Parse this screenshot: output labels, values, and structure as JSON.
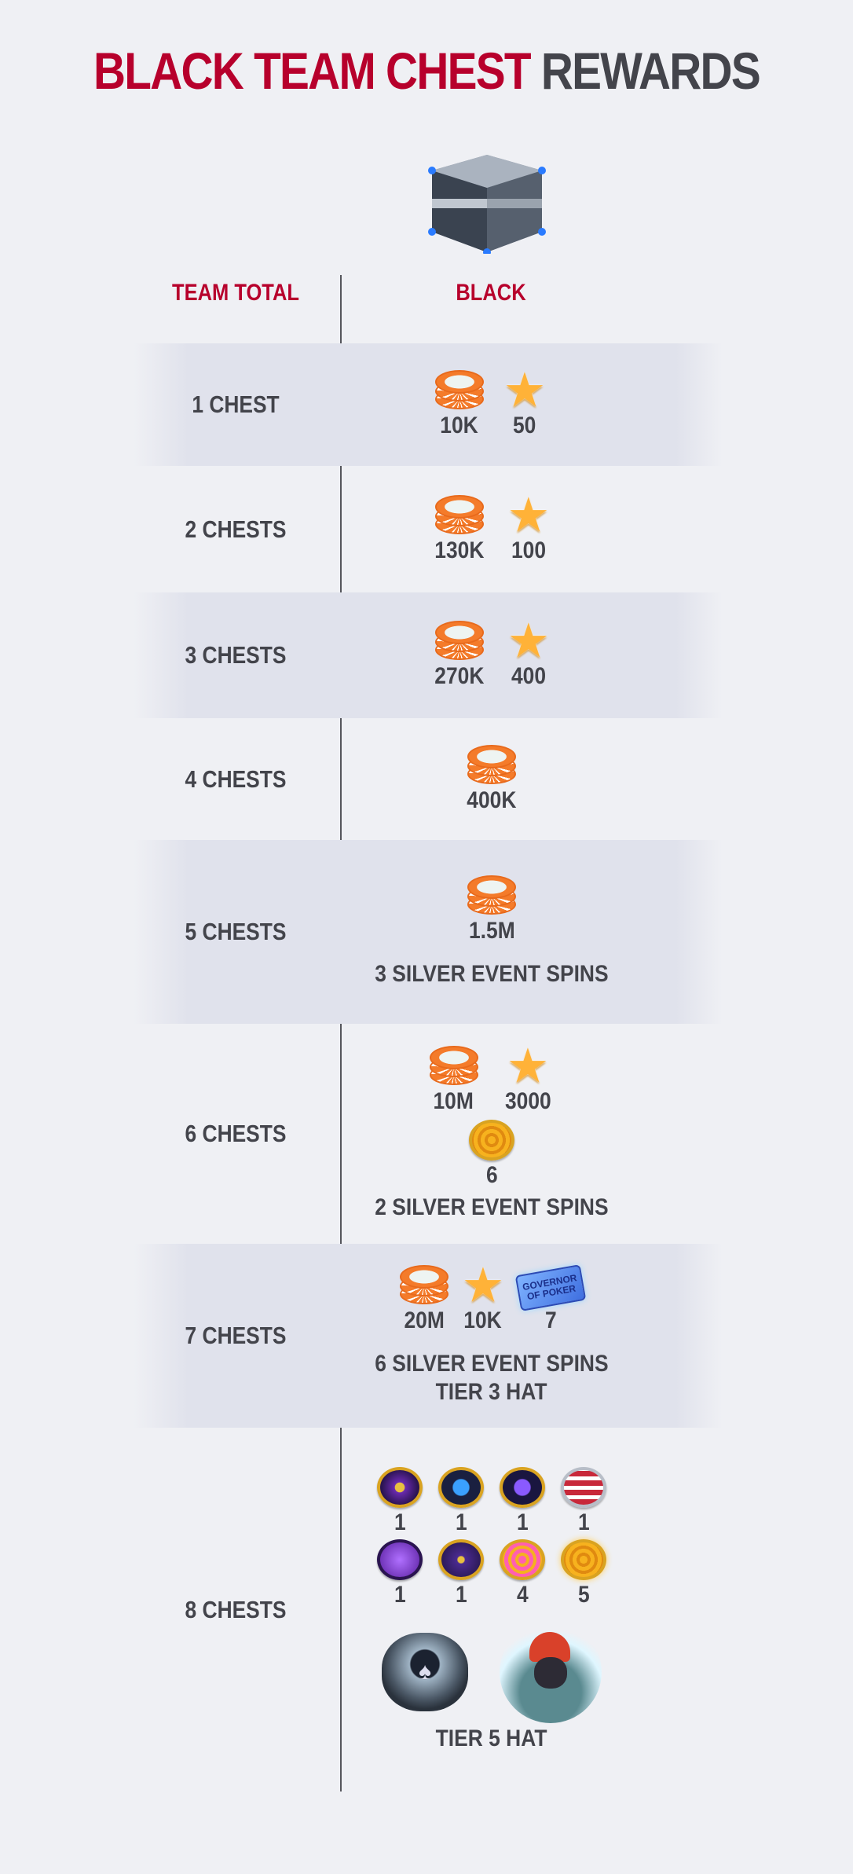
{
  "title": {
    "part1": "BLACK TEAM CHEST",
    "part2": "REWARDS"
  },
  "chest_icon": "black-chest-icon",
  "headers": {
    "left": "TEAM TOTAL",
    "right": "BLACK"
  },
  "colors": {
    "accent": "#b7002c",
    "text": "#43444b",
    "background": "#eff0f4",
    "band": "#e0e2ec"
  },
  "rows": [
    {
      "label": "1 CHEST",
      "items": [
        {
          "icon": "chips-icon",
          "value": "10K"
        },
        {
          "icon": "star-icon",
          "value": "50"
        }
      ]
    },
    {
      "label": "2 CHESTS",
      "items": [
        {
          "icon": "chips-icon",
          "value": "130K"
        },
        {
          "icon": "star-icon",
          "value": "100"
        }
      ]
    },
    {
      "label": "3 CHESTS",
      "items": [
        {
          "icon": "chips-icon",
          "value": "270K"
        },
        {
          "icon": "star-icon",
          "value": "400"
        }
      ]
    },
    {
      "label": "4 CHESTS",
      "items": [
        {
          "icon": "chips-icon",
          "value": "400K"
        }
      ]
    },
    {
      "label": "5 CHESTS",
      "items": [
        {
          "icon": "chips-icon",
          "value": "1.5M"
        }
      ],
      "notes": [
        "3 SILVER EVENT SPINS"
      ]
    },
    {
      "label": "6 CHESTS",
      "items": [
        {
          "icon": "chips-icon",
          "value": "10M"
        },
        {
          "icon": "star-icon",
          "value": "3000"
        },
        {
          "icon": "gold-swirl-token-icon",
          "value": "6"
        }
      ],
      "notes": [
        "2 SILVER EVENT SPINS"
      ]
    },
    {
      "label": "7 CHESTS",
      "items": [
        {
          "icon": "chips-icon",
          "value": "20M"
        },
        {
          "icon": "star-icon",
          "value": "10K"
        },
        {
          "icon": "poker-ticket-icon",
          "value": "7",
          "text": "GOVERNOR OF POKER"
        }
      ],
      "notes": [
        "6 SILVER EVENT SPINS",
        "TIER 3 HAT"
      ]
    },
    {
      "label": "8 CHESTS",
      "items": [
        {
          "icon": "purple-gold-emblem-coin-icon",
          "value": "1"
        },
        {
          "icon": "blue-bitcoin-coin-icon",
          "value": "1"
        },
        {
          "icon": "purple-bitcoin-crown-coin-icon",
          "value": "1"
        },
        {
          "icon": "stars-stripes-coin-icon",
          "value": "1"
        },
        {
          "icon": "purple-rocket-coin-icon",
          "value": "1"
        },
        {
          "icon": "gold-g-coin-icon",
          "value": "1"
        },
        {
          "icon": "pink-swirl-coin-icon",
          "value": "4"
        },
        {
          "icon": "gold-swirl-coin-icon",
          "value": "5"
        }
      ],
      "extras": [
        {
          "icon": "spade-ring-icon",
          "text": "BLACK"
        },
        {
          "icon": "panther-hockey-hat-icon"
        }
      ],
      "notes": [
        "TIER 5 HAT"
      ]
    }
  ]
}
